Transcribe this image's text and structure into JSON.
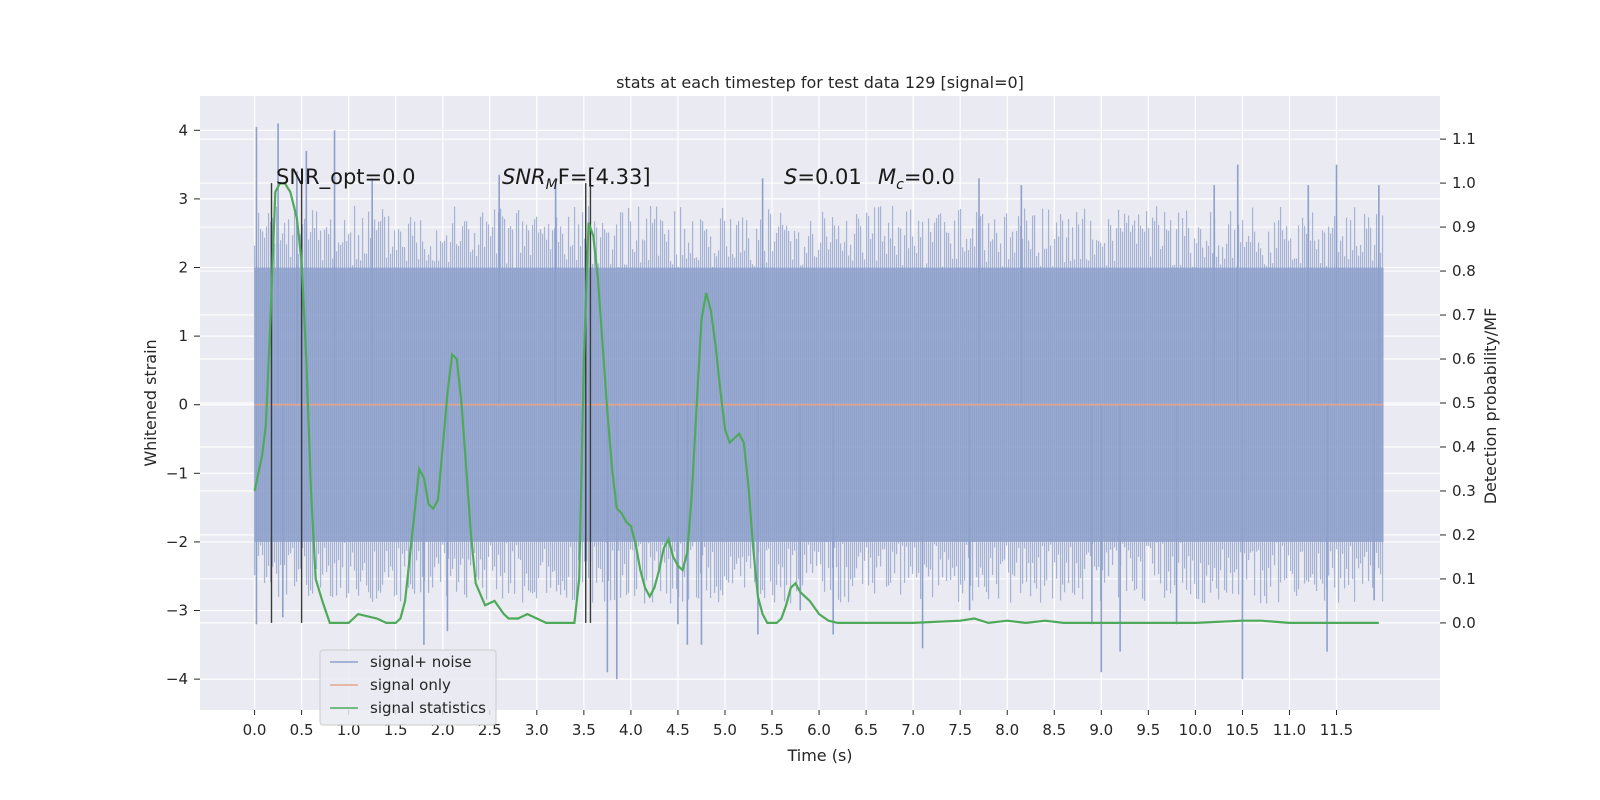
{
  "chart_data": {
    "type": "line",
    "title": "stats at each timestep for test data 129 [signal=0]",
    "xlabel": "Time (s)",
    "ylabel_left": "Whitened strain",
    "ylabel_right": "Detection probability/MF",
    "xlim": [
      -0.58,
      12.6
    ],
    "ylim_left": [
      -4.45,
      4.5
    ],
    "ylim_right": [
      -0.198,
      1.198
    ],
    "x_ticks": [
      0.0,
      0.5,
      1.0,
      1.5,
      2.0,
      2.5,
      3.0,
      3.5,
      4.0,
      4.5,
      5.0,
      5.5,
      6.0,
      6.5,
      7.0,
      7.5,
      8.0,
      8.5,
      9.0,
      9.5,
      10.0,
      10.5,
      11.0,
      11.5
    ],
    "x_tick_labels": [
      "0.0",
      "0.5",
      "1.0",
      "1.5",
      "2.0",
      "2.5",
      "3.0",
      "3.5",
      "4.0",
      "4.5",
      "5.0",
      "5.5",
      "6.0",
      "6.5",
      "7.0",
      "7.5",
      "8.0",
      "8.5",
      "9.0",
      "9.5",
      "10.0",
      "10.5",
      "11.0",
      "11.5"
    ],
    "y_left_ticks": [
      -4,
      -3,
      -2,
      -1,
      0,
      1,
      2,
      3,
      4
    ],
    "y_left_tick_labels": [
      "−4",
      "−3",
      "−2",
      "−1",
      "0",
      "1",
      "2",
      "3",
      "4"
    ],
    "y_right_ticks": [
      0.0,
      0.1,
      0.2,
      0.3,
      0.4,
      0.5,
      0.6,
      0.7,
      0.8,
      0.9,
      1.0,
      1.1
    ],
    "y_right_tick_labels": [
      "0.0",
      "0.1",
      "0.2",
      "0.3",
      "0.4",
      "0.5",
      "0.6",
      "0.7",
      "0.8",
      "0.9",
      "1.0",
      "1.1"
    ],
    "grid": true,
    "legend_position": "lower-left",
    "annotations": {
      "snr_opt": "SNR_opt=0.0",
      "snr_mf_main": "SNR",
      "snr_mf_sub": "M",
      "snr_mf_rest": "F=[4.33]",
      "s_main": "S",
      "s_rest": "=0.01",
      "mc_main": "M",
      "mc_sub": "c",
      "mc_rest": "=0.0"
    },
    "vertical_lines": [
      0.18,
      0.5,
      3.52,
      3.57
    ],
    "series": [
      {
        "name": "signal+ noise",
        "color": "#8da0cb",
        "axis": "left",
        "style": "noise-band",
        "x_range": [
          0.0,
          12.0
        ],
        "envelope": [
          -2.0,
          2.0
        ],
        "spikes": [
          [
            0.02,
            4.05
          ],
          [
            0.25,
            4.1
          ],
          [
            0.45,
            3.4
          ],
          [
            0.55,
            3.7
          ],
          [
            0.85,
            4.0
          ],
          [
            1.25,
            3.3
          ],
          [
            2.6,
            3.35
          ],
          [
            3.2,
            3.3
          ],
          [
            5.4,
            3.3
          ],
          [
            7.7,
            3.3
          ],
          [
            8.15,
            3.2
          ],
          [
            10.2,
            3.2
          ],
          [
            10.45,
            3.5
          ],
          [
            11.2,
            3.2
          ],
          [
            11.5,
            3.5
          ],
          [
            11.95,
            3.2
          ],
          [
            0.02,
            -3.2
          ],
          [
            0.3,
            -3.1
          ],
          [
            1.8,
            -3.5
          ],
          [
            2.05,
            -3.3
          ],
          [
            3.75,
            -3.9
          ],
          [
            3.85,
            -4.0
          ],
          [
            4.5,
            -3.2
          ],
          [
            4.6,
            -3.5
          ],
          [
            4.75,
            -3.5
          ],
          [
            5.35,
            -3.35
          ],
          [
            5.8,
            -3.0
          ],
          [
            6.15,
            -3.35
          ],
          [
            7.1,
            -3.55
          ],
          [
            7.6,
            -3.0
          ],
          [
            8.9,
            -3.2
          ],
          [
            9.0,
            -3.9
          ],
          [
            9.2,
            -3.6
          ],
          [
            9.8,
            -3.2
          ],
          [
            10.5,
            -4.0
          ],
          [
            11.4,
            -3.6
          ],
          [
            11.9,
            -2.85
          ]
        ]
      },
      {
        "name": "signal only",
        "color": "#e5a58c",
        "axis": "left",
        "x": [
          0.0,
          12.0
        ],
        "y": [
          0.0,
          0.0
        ]
      },
      {
        "name": "signal statistics",
        "color": "#4eaa5a",
        "axis": "right",
        "x": [
          0.0,
          0.08,
          0.12,
          0.17,
          0.22,
          0.27,
          0.32,
          0.38,
          0.45,
          0.5,
          0.55,
          0.6,
          0.65,
          0.72,
          0.8,
          0.9,
          1.0,
          1.05,
          1.1,
          1.2,
          1.3,
          1.4,
          1.5,
          1.55,
          1.6,
          1.65,
          1.7,
          1.75,
          1.8,
          1.85,
          1.9,
          1.95,
          2.0,
          2.05,
          2.1,
          2.15,
          2.2,
          2.25,
          2.3,
          2.35,
          2.45,
          2.55,
          2.65,
          2.7,
          2.8,
          2.9,
          3.0,
          3.1,
          3.2,
          3.3,
          3.4,
          3.45,
          3.5,
          3.55,
          3.6,
          3.65,
          3.7,
          3.75,
          3.8,
          3.85,
          3.9,
          3.95,
          4.0,
          4.05,
          4.1,
          4.15,
          4.2,
          4.25,
          4.3,
          4.35,
          4.4,
          4.45,
          4.5,
          4.55,
          4.6,
          4.65,
          4.7,
          4.75,
          4.8,
          4.85,
          4.9,
          4.95,
          5.0,
          5.05,
          5.1,
          5.15,
          5.2,
          5.25,
          5.3,
          5.35,
          5.4,
          5.45,
          5.5,
          5.55,
          5.6,
          5.65,
          5.7,
          5.75,
          5.8,
          5.9,
          6.0,
          6.1,
          6.2,
          6.5,
          7.0,
          7.5,
          7.65,
          7.8,
          8.0,
          8.2,
          8.4,
          8.6,
          9.0,
          9.5,
          10.0,
          10.5,
          10.7,
          11.0,
          11.5,
          11.95
        ],
        "y": [
          0.3,
          0.38,
          0.45,
          0.7,
          0.98,
          1.0,
          1.0,
          0.98,
          0.92,
          0.82,
          0.6,
          0.3,
          0.1,
          0.05,
          0.0,
          0.0,
          0.0,
          0.01,
          0.02,
          0.015,
          0.01,
          0.0,
          0.0,
          0.01,
          0.05,
          0.15,
          0.25,
          0.35,
          0.33,
          0.27,
          0.26,
          0.28,
          0.4,
          0.52,
          0.61,
          0.6,
          0.5,
          0.35,
          0.2,
          0.09,
          0.04,
          0.05,
          0.02,
          0.01,
          0.01,
          0.02,
          0.01,
          0.0,
          0.0,
          0.0,
          0.0,
          0.1,
          0.6,
          0.91,
          0.88,
          0.78,
          0.63,
          0.48,
          0.35,
          0.26,
          0.25,
          0.23,
          0.22,
          0.18,
          0.12,
          0.08,
          0.06,
          0.08,
          0.12,
          0.17,
          0.19,
          0.15,
          0.13,
          0.12,
          0.16,
          0.3,
          0.5,
          0.69,
          0.75,
          0.71,
          0.63,
          0.53,
          0.44,
          0.41,
          0.42,
          0.43,
          0.41,
          0.31,
          0.17,
          0.06,
          0.02,
          0.0,
          0.0,
          0.0,
          0.01,
          0.04,
          0.08,
          0.09,
          0.07,
          0.05,
          0.02,
          0.005,
          0.0,
          0.0,
          0.0,
          0.005,
          0.01,
          0.0,
          0.005,
          0.0,
          0.005,
          0.0,
          0.0,
          0.0,
          0.0,
          0.005,
          0.005,
          0.0,
          0.0,
          0.0
        ]
      }
    ]
  }
}
